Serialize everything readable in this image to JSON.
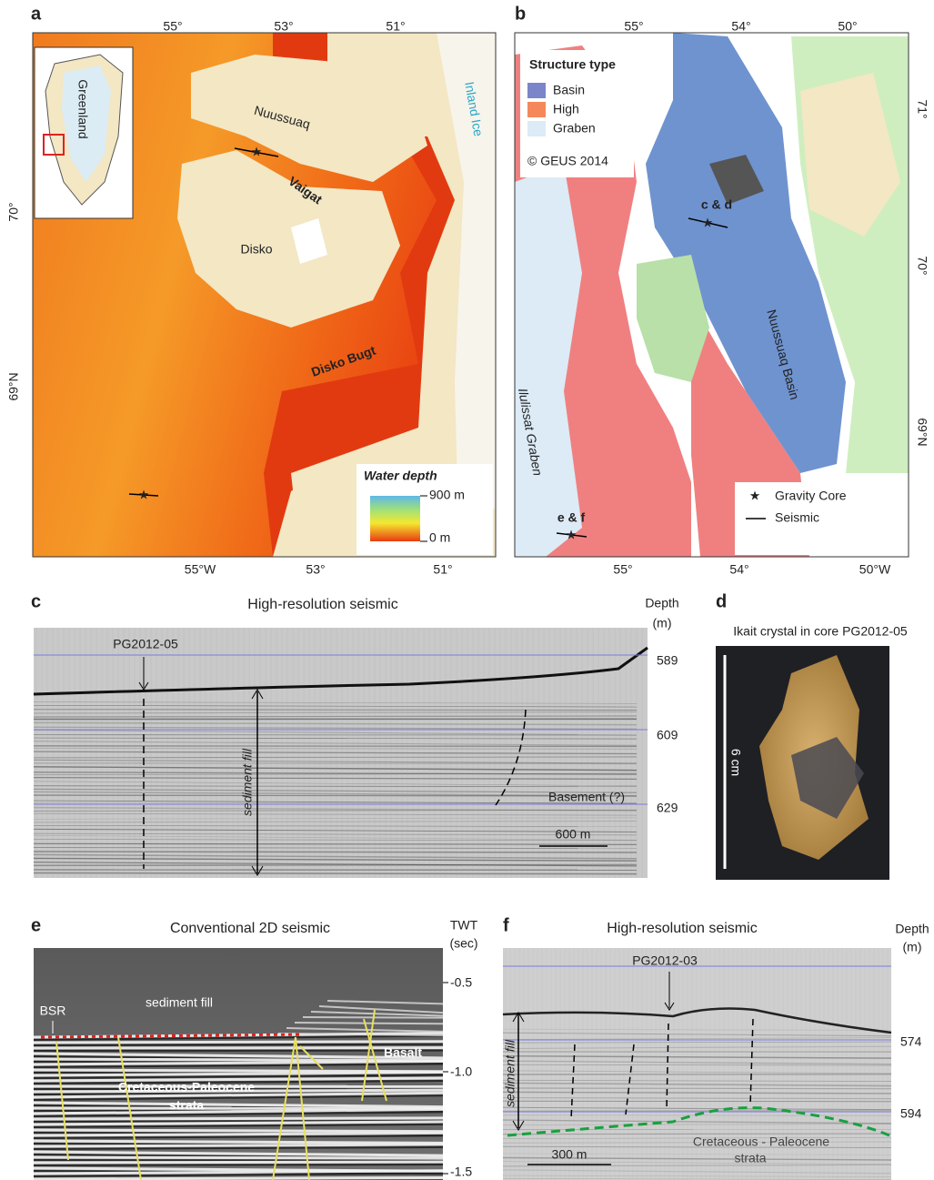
{
  "panels": {
    "a": {
      "letter": "a",
      "top_ticks": [
        "55°",
        "53°",
        "51°"
      ],
      "left_ticks": [
        "70°",
        "69°N"
      ],
      "bottom_ticks": [
        "55°W",
        "53°",
        "51°"
      ],
      "labels": {
        "nuussuaq": "Nuussuaq",
        "vaigat": "Vaigat",
        "disko": "Disko",
        "disko_bugt": "Disko Bugt",
        "inland_ice": "Inland Ice",
        "greenland": "Greenland"
      },
      "legend": {
        "title": "Water depth",
        "max": "900 m",
        "min": "0 m"
      }
    },
    "b": {
      "letter": "b",
      "top_ticks": [
        "55°",
        "54°",
        "50°"
      ],
      "right_ticks": [
        "71°",
        "70°",
        "69°N"
      ],
      "bottom_ticks": [
        "55°",
        "54°",
        "50°W"
      ],
      "legend": {
        "title": "Structure type",
        "items": [
          "Basin",
          "High",
          "Graben"
        ],
        "copyright": "© GEUS 2014"
      },
      "labels": {
        "cd": "c & d",
        "basin": "Nuussuaq Basin",
        "graben": "Ilulissat Graben",
        "ef": "e & f"
      },
      "key": {
        "core": "Gravity Core",
        "seismic": "Seismic"
      }
    },
    "c": {
      "letter": "c",
      "title": "High-resolution seismic",
      "axis_label": [
        "Depth",
        "(m)"
      ],
      "ticks": [
        "589",
        "609",
        "629"
      ],
      "labels": {
        "core": "PG2012-05",
        "fill": "sediment fill",
        "basement": "Basement (?)",
        "scale": "600 m"
      }
    },
    "d": {
      "letter": "d",
      "title": "Ikait crystal in core PG2012-05",
      "scale": "6 cm"
    },
    "e": {
      "letter": "e",
      "title": "Conventional 2D seismic",
      "axis_label": [
        "TWT",
        "(sec)"
      ],
      "ticks": [
        "-0.5",
        "-1.0",
        "-1.5"
      ],
      "labels": {
        "bsr": "BSR",
        "fill": "sediment fill",
        "strata": [
          "Cretaceous-Paleocene",
          "strata"
        ],
        "basalt": "Basalt"
      }
    },
    "f": {
      "letter": "f",
      "title": "High-resolution seismic",
      "axis_label": [
        "Depth",
        "(m)"
      ],
      "ticks": [
        "574",
        "594"
      ],
      "labels": {
        "core": "PG2012-03",
        "fill": "sediment fill",
        "strata": [
          "Cretaceous - Paleocene",
          "strata"
        ],
        "scale": "300 m"
      }
    }
  }
}
